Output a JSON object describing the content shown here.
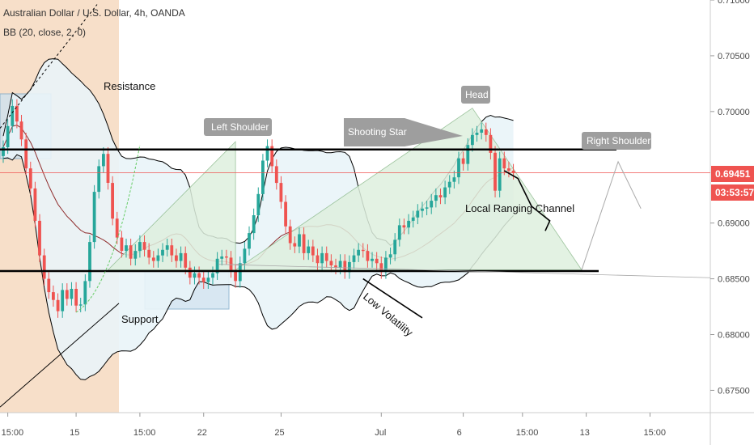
{
  "header": {
    "title": "Australian Dollar / U.S. Dollar, 4h, OANDA",
    "indicator": "BB (20, close, 2, 0)"
  },
  "colors": {
    "up_candle": "#26a69a",
    "down_candle": "#ef5350",
    "bb_band": "#000000",
    "bb_basis": "#8e2b2b",
    "bb_fill": "#e9f4f8",
    "pattern_fill": "#dff0df",
    "price_line": "#ef5350",
    "callout_bg": "#9e9e9e",
    "zone_fill": "#f6d9bf",
    "box_fill": "#cfe2ef"
  },
  "chart_data": {
    "type": "candlestick",
    "title": "Australian Dollar / U.S. Dollar, 4h, OANDA",
    "indicator": "BB (20, close, 2, 0)",
    "y_range": [
      0.673,
      0.71
    ],
    "price_ticks": [
      "0.71000",
      "0.70500",
      "0.70000",
      "0.69000",
      "0.68500",
      "0.68000",
      "0.67500"
    ],
    "x_ticks": [
      "15:00",
      "15",
      "15:00",
      "22",
      "25",
      "Jul",
      "6",
      "15:00",
      "13",
      "15:00"
    ],
    "last_price": "0.69451",
    "countdown": "03:53:57",
    "horizontal_levels": [
      0.6966,
      0.6857
    ],
    "closes": [
      0.6968,
      0.6987,
      0.7005,
      0.6991,
      0.6975,
      0.6949,
      0.6931,
      0.6902,
      0.6871,
      0.685,
      0.6838,
      0.6831,
      0.6821,
      0.684,
      0.6832,
      0.6841,
      0.6826,
      0.6827,
      0.6848,
      0.6883,
      0.6928,
      0.6951,
      0.6962,
      0.6936,
      0.6904,
      0.6887,
      0.6875,
      0.688,
      0.6868,
      0.6875,
      0.6883,
      0.6876,
      0.6869,
      0.6866,
      0.6871,
      0.6876,
      0.688,
      0.6871,
      0.6866,
      0.6873,
      0.686,
      0.6851,
      0.6855,
      0.6851,
      0.6847,
      0.6851,
      0.6855,
      0.6868,
      0.687,
      0.6869,
      0.6857,
      0.6848,
      0.6864,
      0.6877,
      0.6891,
      0.6907,
      0.6926,
      0.6956,
      0.6969,
      0.6951,
      0.6936,
      0.6919,
      0.6897,
      0.6882,
      0.6879,
      0.689,
      0.6873,
      0.6879,
      0.6871,
      0.6864,
      0.6873,
      0.6866,
      0.6862,
      0.686,
      0.6866,
      0.6856,
      0.6865,
      0.6871,
      0.6876,
      0.6875,
      0.6866,
      0.6868,
      0.6864,
      0.6856,
      0.6869,
      0.6872,
      0.6885,
      0.6898,
      0.6896,
      0.6902,
      0.6905,
      0.6911,
      0.6913,
      0.6914,
      0.692,
      0.6925,
      0.6923,
      0.6932,
      0.6937,
      0.6941,
      0.6958,
      0.6953,
      0.697,
      0.6979,
      0.6981,
      0.6984,
      0.6979,
      0.6963,
      0.6929,
      0.6958,
      0.6949,
      0.6947,
      0.6945
    ]
  },
  "annotations": {
    "resistance": "Resistance",
    "support": "Support",
    "left_shoulder": "Left Shoulder",
    "head": "Head",
    "right_shoulder": "Right Shoulder",
    "shooting_star": "Shooting Star",
    "local_channel": "Local Ranging Channel",
    "low_volatility": "Low Volatility"
  }
}
